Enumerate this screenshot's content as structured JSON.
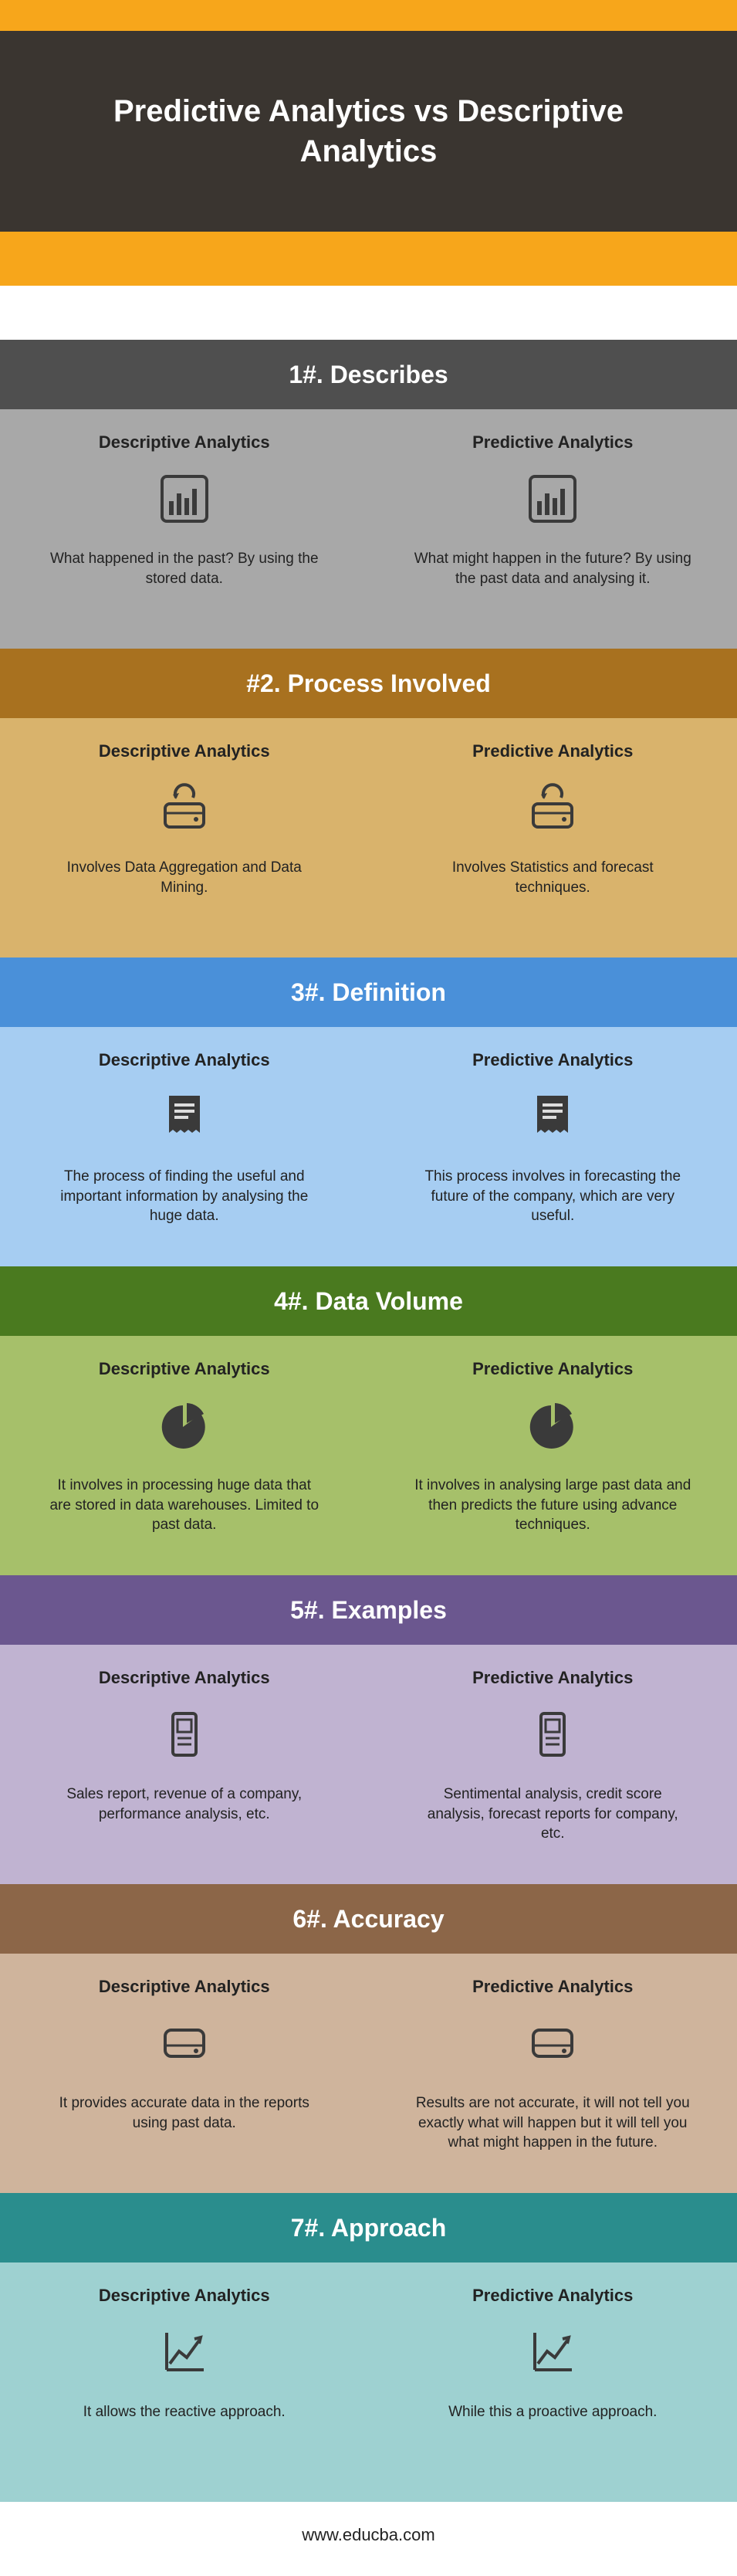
{
  "hero": {
    "title": "Predictive Analytics vs Descriptive Analytics",
    "orange": "#f7a61b",
    "hero_bg": "#3a3530"
  },
  "columns": {
    "left_label": "Descriptive Analytics",
    "right_label": "Predictive Analytics"
  },
  "sections": [
    {
      "header": "1#. Describes",
      "header_bg": "#4f4f4f",
      "body_bg": "#a8a8a8",
      "icon": "barchart",
      "icon_color": "#3a3a3a",
      "left_text": "What happened in the past? By using the stored data.",
      "right_text": "What might happen in the future? By using the past data and analysing it."
    },
    {
      "header": "#2. Process Involved",
      "header_bg": "#a8711f",
      "body_bg": "#d9b36c",
      "icon": "drive_cycle",
      "icon_color": "#3a3a3a",
      "left_text": "Involves Data Aggregation and Data Mining.",
      "right_text": "Involves Statistics and forecast techniques."
    },
    {
      "header": "3#. Definition",
      "header_bg": "#4a90d9",
      "body_bg": "#a6cdf2",
      "icon": "receipt",
      "icon_color": "#3a3a3a",
      "left_text": "The process of finding the useful and important information by analysing the huge data.",
      "right_text": "This process involves in forecasting the future of the company, which are very useful."
    },
    {
      "header": "4#. Data Volume",
      "header_bg": "#4a7a1f",
      "body_bg": "#a6c06a",
      "icon": "pie",
      "icon_color": "#3a3a3a",
      "left_text": "It involves in processing huge data that are stored in data warehouses. Limited to past data.",
      "right_text": "It involves in analysing large past data and then predicts the future using advance techniques."
    },
    {
      "header": "5#. Examples",
      "header_bg": "#6b578f",
      "body_bg": "#c0b3d1",
      "icon": "device",
      "icon_color": "#3a3a3a",
      "left_text": "Sales report, revenue of a company, performance analysis, etc.",
      "right_text": "Sentimental analysis, credit score analysis, forecast reports for company, etc."
    },
    {
      "header": "6#. Accuracy",
      "header_bg": "#8c6648",
      "body_bg": "#cfb49c",
      "icon": "drive",
      "icon_color": "#3a3a3a",
      "left_text": "It provides accurate data in the reports using past data.",
      "right_text": "Results are not accurate, it will not tell you exactly what will happen but it will tell you what might happen in the future."
    },
    {
      "header": "7#. Approach",
      "header_bg": "#2a8d8d",
      "body_bg": "#9ed1d1",
      "icon": "trend",
      "icon_color": "#3a3a3a",
      "left_text": "It allows the reactive approach.",
      "right_text": "While this a proactive approach."
    }
  ],
  "footer": "www.educba.com"
}
